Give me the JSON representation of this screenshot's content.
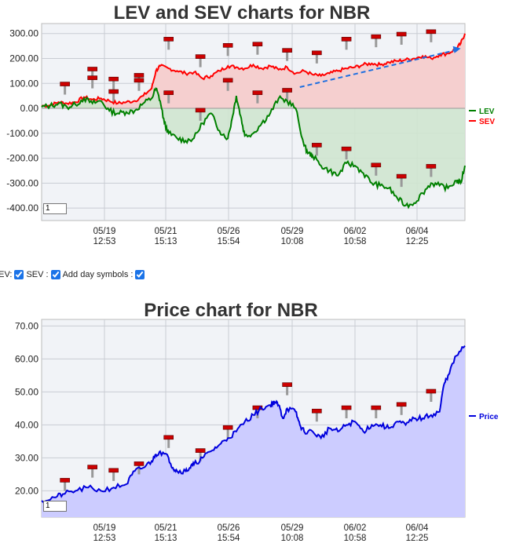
{
  "lev_sev_chart": {
    "title": "LEV and SEV charts for NBR",
    "page_input_value": "1"
  },
  "price_chart": {
    "title": "Price chart for NBR",
    "page_input_value": "1"
  },
  "controls": {
    "lev_label": "LEV:",
    "lev_checked": true,
    "sev_label": "SEV :",
    "sev_checked": true,
    "day_symbols_label": "Add day symbols :",
    "day_symbols_checked": true
  },
  "colors": {
    "lev_line": "#008000",
    "lev_fill": "#cfe6cf",
    "sev_line": "#ff0000",
    "sev_fill": "#f5cfcf",
    "price_line": "#0000dd",
    "price_fill": "#ccccff",
    "trend_arrow": "#1e6fe0",
    "day_marker": "#cc0000",
    "plot_bg": "#f1f3f7"
  },
  "chart_data": [
    {
      "type": "line",
      "title": "LEV and SEV charts for NBR",
      "x_tick_labels": [
        [
          "05/19",
          "12:53"
        ],
        [
          "05/21",
          "15:13"
        ],
        [
          "05/26",
          "15:54"
        ],
        [
          "05/29",
          "10:08"
        ],
        [
          "06/02",
          "10:58"
        ],
        [
          "06/04",
          "12:25"
        ]
      ],
      "y_tick_labels": [
        "300.00",
        "200.00",
        "100.00",
        "0.00",
        "-100.00",
        "-200.00",
        "-300.00",
        "-400.00"
      ],
      "y_ticks": [
        300,
        200,
        100,
        0,
        -100,
        -200,
        -300,
        -400
      ],
      "ylim": [
        -450,
        340
      ],
      "xlim": [
        0,
        100
      ],
      "legend": {
        "placement": "right",
        "entries": [
          "LEV",
          "SEV"
        ]
      },
      "grid": true,
      "series": [
        {
          "name": "LEV",
          "x": [
            0,
            2,
            4,
            6,
            8,
            10,
            12,
            14,
            16,
            18,
            20,
            22,
            24,
            26,
            27,
            28,
            29,
            30,
            32,
            34,
            36,
            38,
            40,
            42,
            44,
            45,
            46,
            47,
            48,
            50,
            52,
            54,
            56,
            58,
            60,
            62,
            63,
            64,
            66,
            68,
            70,
            72,
            74,
            76,
            78,
            80,
            82,
            84,
            86,
            88,
            90,
            92,
            94,
            96,
            98,
            99,
            100
          ],
          "values": [
            5,
            10,
            20,
            5,
            15,
            40,
            20,
            30,
            -10,
            -20,
            -15,
            -10,
            20,
            40,
            80,
            30,
            -60,
            -100,
            -120,
            -130,
            -120,
            -60,
            -20,
            -90,
            -120,
            -40,
            50,
            -30,
            -110,
            -100,
            -60,
            -20,
            40,
            30,
            0,
            -150,
            -180,
            -190,
            -230,
            -250,
            -270,
            -220,
            -230,
            -260,
            -300,
            -310,
            -320,
            -360,
            -390,
            -380,
            -340,
            -300,
            -310,
            -320,
            -290,
            -300,
            -230
          ]
        },
        {
          "name": "SEV",
          "x": [
            0,
            2,
            4,
            6,
            8,
            10,
            12,
            14,
            16,
            18,
            20,
            22,
            24,
            26,
            27,
            28,
            30,
            32,
            34,
            36,
            38,
            40,
            42,
            44,
            46,
            48,
            50,
            52,
            54,
            56,
            58,
            60,
            62,
            64,
            66,
            68,
            70,
            72,
            74,
            76,
            78,
            80,
            82,
            84,
            86,
            88,
            90,
            92,
            94,
            96,
            98,
            99,
            100
          ],
          "values": [
            10,
            12,
            25,
            20,
            25,
            45,
            35,
            40,
            30,
            20,
            25,
            30,
            50,
            80,
            150,
            170,
            160,
            150,
            140,
            145,
            120,
            130,
            150,
            170,
            165,
            160,
            175,
            160,
            170,
            155,
            165,
            140,
            150,
            135,
            130,
            140,
            150,
            160,
            165,
            175,
            180,
            175,
            185,
            190,
            195,
            200,
            210,
            200,
            215,
            220,
            240,
            260,
            300
          ]
        }
      ],
      "annotation": {
        "type": "arrow",
        "from": [
          61,
          85
        ],
        "to": [
          99,
          240
        ]
      }
    },
    {
      "type": "area",
      "title": "Price chart for NBR",
      "x_tick_labels": [
        [
          "05/19",
          "12:53"
        ],
        [
          "05/21",
          "15:13"
        ],
        [
          "05/26",
          "15:54"
        ],
        [
          "05/29",
          "10:08"
        ],
        [
          "06/02",
          "10:58"
        ],
        [
          "06/04",
          "12:25"
        ]
      ],
      "y_tick_labels": [
        "70.00",
        "60.00",
        "50.00",
        "40.00",
        "30.00",
        "20.00"
      ],
      "y_ticks": [
        70,
        60,
        50,
        40,
        30,
        20
      ],
      "ylim": [
        12,
        72
      ],
      "xlim": [
        0,
        100
      ],
      "legend": {
        "placement": "right",
        "entries": [
          "Price"
        ]
      },
      "grid": true,
      "series": [
        {
          "name": "Price",
          "x": [
            0,
            3,
            5,
            8,
            11,
            14,
            17,
            20,
            22,
            24,
            26,
            27,
            28,
            30,
            31,
            32,
            34,
            35,
            36,
            38,
            40,
            42,
            44,
            46,
            48,
            50,
            52,
            54,
            55,
            56,
            57,
            58,
            60,
            61,
            62,
            64,
            66,
            68,
            70,
            72,
            74,
            76,
            78,
            80,
            82,
            84,
            86,
            88,
            90,
            92,
            94,
            95,
            96,
            98,
            100
          ],
          "values": [
            17,
            18,
            19,
            20,
            21,
            20,
            21,
            22,
            26,
            27,
            29,
            31,
            32,
            30,
            27,
            26,
            26,
            27,
            28,
            30,
            32,
            34,
            36,
            38,
            41,
            43,
            45,
            46,
            47,
            46,
            42,
            45,
            44,
            40,
            38,
            38,
            36,
            39,
            38,
            40,
            41,
            38,
            40,
            40,
            39,
            41,
            40,
            42,
            42,
            43,
            44,
            52,
            55,
            61,
            64
          ]
        }
      ]
    }
  ],
  "day_markers": {
    "lev_sev": [
      {
        "x": 5.5,
        "y": 55
      },
      {
        "x": 12,
        "y": 115
      },
      {
        "x": 12,
        "y": 80
      },
      {
        "x": 17,
        "y": 75
      },
      {
        "x": 17,
        "y": 25
      },
      {
        "x": 23,
        "y": 90
      },
      {
        "x": 23,
        "y": 70
      },
      {
        "x": 30,
        "y": 235
      },
      {
        "x": 30,
        "y": 20
      },
      {
        "x": 37.5,
        "y": 165
      },
      {
        "x": 37.5,
        "y": -50
      },
      {
        "x": 44,
        "y": 210
      },
      {
        "x": 44,
        "y": 70
      },
      {
        "x": 51,
        "y": 215
      },
      {
        "x": 51,
        "y": 20
      },
      {
        "x": 58,
        "y": 190
      },
      {
        "x": 58,
        "y": 30
      },
      {
        "x": 65,
        "y": 180
      },
      {
        "x": 65,
        "y": -190
      },
      {
        "x": 72,
        "y": 235
      },
      {
        "x": 72,
        "y": -205
      },
      {
        "x": 79,
        "y": 245
      },
      {
        "x": 79,
        "y": -270
      },
      {
        "x": 85,
        "y": 255
      },
      {
        "x": 85,
        "y": -315
      },
      {
        "x": 92,
        "y": 265
      },
      {
        "x": 92,
        "y": -275
      }
    ],
    "price": [
      {
        "x": 5.5,
        "y": 20
      },
      {
        "x": 12,
        "y": 24
      },
      {
        "x": 17,
        "y": 23
      },
      {
        "x": 23,
        "y": 25
      },
      {
        "x": 30,
        "y": 33
      },
      {
        "x": 37.5,
        "y": 29
      },
      {
        "x": 44,
        "y": 36
      },
      {
        "x": 51,
        "y": 42
      },
      {
        "x": 58,
        "y": 49
      },
      {
        "x": 65,
        "y": 41
      },
      {
        "x": 72,
        "y": 42
      },
      {
        "x": 79,
        "y": 42
      },
      {
        "x": 85,
        "y": 43
      },
      {
        "x": 92,
        "y": 47
      }
    ]
  }
}
